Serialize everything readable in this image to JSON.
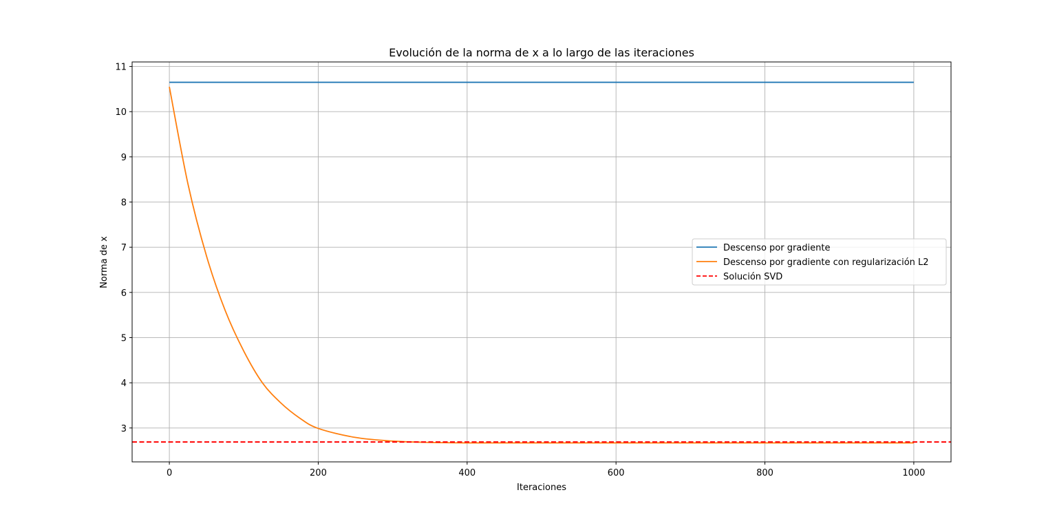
{
  "chart_data": {
    "type": "line",
    "title": "Evolución de la norma de x a lo largo de las iteraciones",
    "xlabel": "Iteraciones",
    "ylabel": "Norma de x",
    "xlim": [
      -50,
      1050
    ],
    "ylim": [
      2.25,
      11.1
    ],
    "xticks": [
      "0",
      "200",
      "400",
      "600",
      "800",
      "1000"
    ],
    "yticks": [
      "3",
      "4",
      "5",
      "6",
      "7",
      "8",
      "9",
      "10",
      "11"
    ],
    "grid": true,
    "legend_position": "center-right",
    "series": [
      {
        "name": "Descenso por gradiente",
        "color": "#1f77b4",
        "style": "solid",
        "x": [
          0,
          1000
        ],
        "y": [
          10.65,
          10.65
        ]
      },
      {
        "name": "Descenso por gradiente con regularización L2",
        "color": "#ff7f0e",
        "style": "solid",
        "x": [
          0,
          25,
          50,
          75,
          100,
          125,
          150,
          175,
          200,
          250,
          300,
          350,
          400,
          500,
          600,
          700,
          800,
          900,
          1000
        ],
        "y": [
          10.55,
          8.4,
          6.8,
          5.6,
          4.7,
          4.0,
          3.55,
          3.22,
          2.99,
          2.79,
          2.71,
          2.68,
          2.67,
          2.67,
          2.67,
          2.67,
          2.67,
          2.67,
          2.67
        ]
      },
      {
        "name": "Solución SVD",
        "color": "#ff0000",
        "style": "dashed",
        "hline": 2.69
      }
    ]
  }
}
